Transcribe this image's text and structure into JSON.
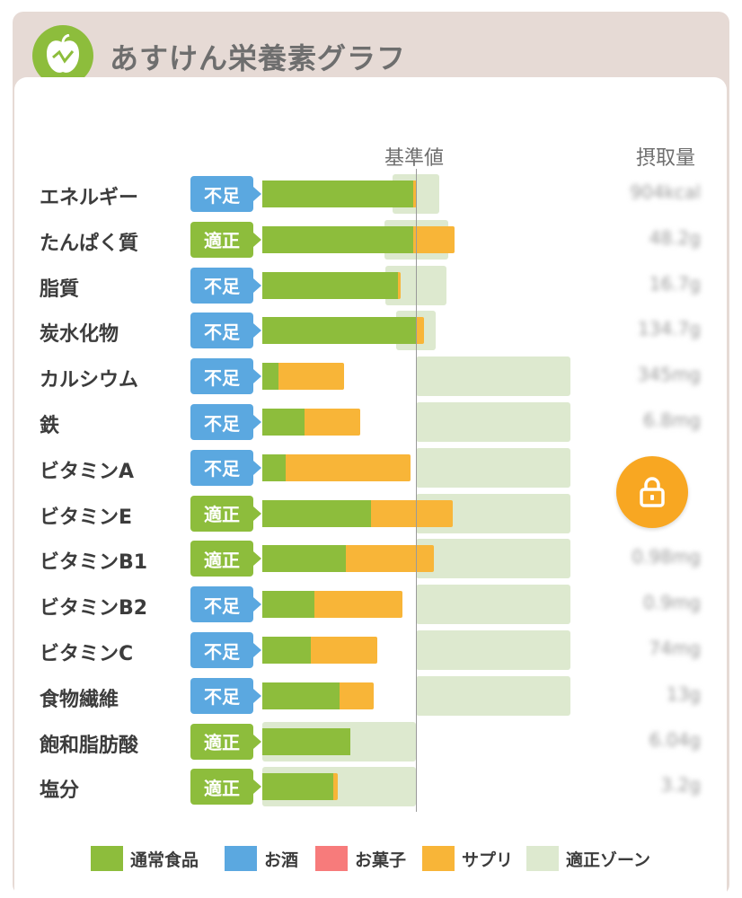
{
  "header": {
    "title": "あすけん栄養素グラフ",
    "icon": "apple-chart-icon"
  },
  "columns": {
    "reference": "基準値",
    "intake": "摂取量"
  },
  "colors": {
    "food": "#8dbd3c",
    "alcohol": "#5ba8e0",
    "snack": "#f77b7b",
    "supplement": "#f8b538",
    "zone": "#dde9cf",
    "low": "#5ba8e0",
    "ok": "#8dbd3c"
  },
  "nutrients": [
    {
      "label": "エネルギー",
      "status": "不足",
      "status_type": "low",
      "food_pct": 96,
      "supp_pct": 2,
      "value": "904kcal"
    },
    {
      "label": "たんぱく質",
      "status": "適正",
      "status_type": "ok",
      "food_pct": 96,
      "supp_pct": 26,
      "value": "48.2g"
    },
    {
      "label": "脂質",
      "status": "不足",
      "status_type": "low",
      "food_pct": 86,
      "supp_pct": 2,
      "value": "16.7g"
    },
    {
      "label": "炭水化物",
      "status": "不足",
      "status_type": "low",
      "food_pct": 98,
      "supp_pct": 5,
      "value": "134.7g"
    },
    {
      "label": "カルシウム",
      "status": "不足",
      "status_type": "low",
      "food_pct": 10,
      "supp_pct": 42,
      "value": "345mg"
    },
    {
      "label": "鉄",
      "status": "不足",
      "status_type": "low",
      "food_pct": 27,
      "supp_pct": 35,
      "value": "6.8mg"
    },
    {
      "label": "ビタミンA",
      "status": "不足",
      "status_type": "low",
      "food_pct": 15,
      "supp_pct": 79,
      "value": ""
    },
    {
      "label": "ビタミンE",
      "status": "適正",
      "status_type": "ok",
      "food_pct": 69,
      "supp_pct": 52,
      "value": ""
    },
    {
      "label": "ビタミンB1",
      "status": "適正",
      "status_type": "ok",
      "food_pct": 53,
      "supp_pct": 56,
      "value": "0.98mg"
    },
    {
      "label": "ビタミンB2",
      "status": "不足",
      "status_type": "low",
      "food_pct": 33,
      "supp_pct": 56,
      "value": "0.9mg"
    },
    {
      "label": "ビタミンC",
      "status": "不足",
      "status_type": "low",
      "food_pct": 31,
      "supp_pct": 42,
      "value": "74mg"
    },
    {
      "label": "食物繊維",
      "status": "不足",
      "status_type": "low",
      "food_pct": 49,
      "supp_pct": 22,
      "value": "13g"
    },
    {
      "label": "飽和脂肪酸",
      "status": "適正",
      "status_type": "ok",
      "food_pct": 56,
      "supp_pct": 0,
      "value": "6.04g"
    },
    {
      "label": "塩分",
      "status": "適正",
      "status_type": "ok",
      "food_pct": 45,
      "supp_pct": 3,
      "value": "3.2g"
    }
  ],
  "legend": [
    {
      "label": "通常食品",
      "color": "#8dbd3c"
    },
    {
      "label": "お酒",
      "color": "#5ba8e0"
    },
    {
      "label": "お菓子",
      "color": "#f77b7b"
    },
    {
      "label": "サプリ",
      "color": "#f8b538"
    },
    {
      "label": "適正ゾーン",
      "color": "#dde9cf"
    }
  ],
  "lock": {
    "icon": "lock-icon"
  }
}
